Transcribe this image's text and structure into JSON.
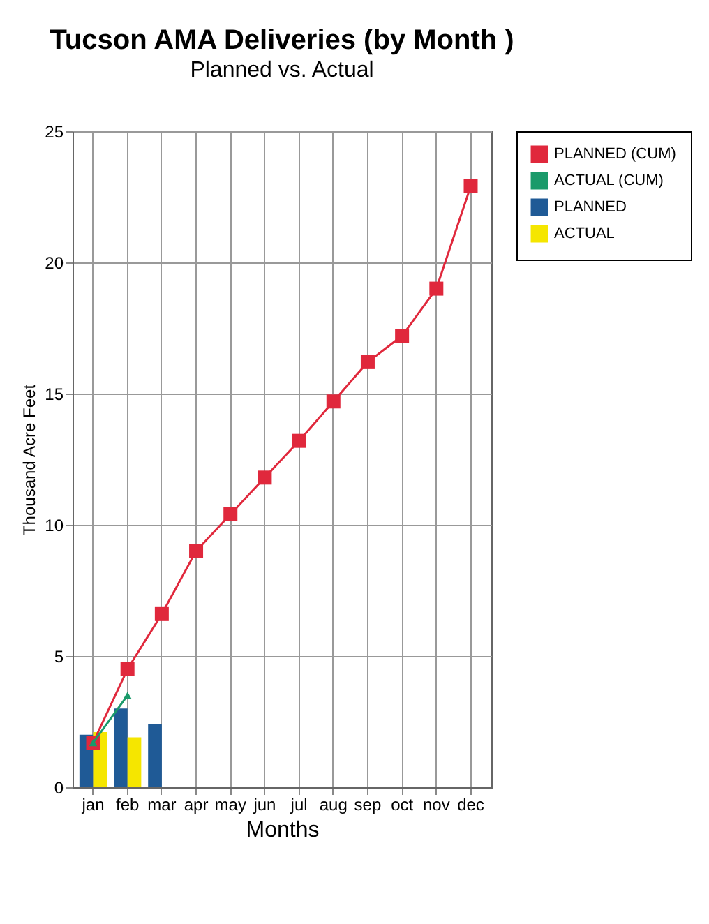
{
  "chart_data": {
    "type": "bar",
    "title": "Tucson AMA Deliveries  (by  Month )",
    "subtitle": "Planned  vs.  Actual",
    "xlabel": "Months",
    "ylabel": "Thousand  Acre Feet",
    "categories": [
      "jan",
      "feb",
      "mar",
      "apr",
      "may",
      "jun",
      "jul",
      "aug",
      "sep",
      "oct",
      "nov",
      "dec"
    ],
    "series": [
      {
        "name": "PLANNED (CUM)",
        "type": "line",
        "marker": "square",
        "color": "#e0283c",
        "values": [
          1.7,
          4.5,
          6.6,
          9.0,
          10.4,
          11.8,
          13.2,
          14.7,
          16.2,
          17.2,
          19.0,
          22.9
        ]
      },
      {
        "name": "ACTUAL (CUM)",
        "type": "line",
        "marker": "triangle",
        "color": "#1a9a6a",
        "values": [
          1.7,
          3.5,
          null,
          null,
          null,
          null,
          null,
          null,
          null,
          null,
          null,
          null
        ]
      },
      {
        "name": "PLANNED",
        "color": "#1f5a96",
        "values": [
          2.0,
          3.0,
          2.4,
          null,
          null,
          null,
          null,
          null,
          null,
          null,
          null,
          null
        ]
      },
      {
        "name": "ACTUAL",
        "color": "#f5e600",
        "values": [
          2.1,
          1.9,
          null,
          null,
          null,
          null,
          null,
          null,
          null,
          null,
          null,
          null
        ]
      }
    ],
    "ylim": [
      0,
      25
    ],
    "yticks": [
      0,
      5,
      10,
      15,
      20,
      25
    ],
    "grid": true,
    "legend": "right"
  }
}
